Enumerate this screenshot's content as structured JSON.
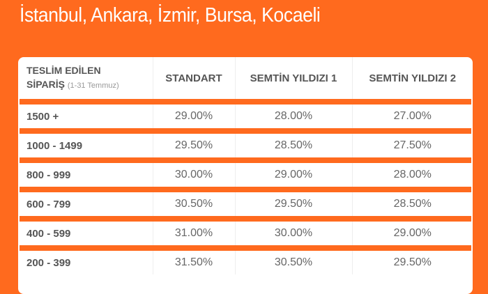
{
  "title": "İstanbul, Ankara, İzmir, Bursa, Kocaeli",
  "table": {
    "header": {
      "col0_line1": "TESLİM EDİLEN",
      "col0_line2": "SİPARİŞ",
      "col0_sub": "(1-31 Temmuz)",
      "col1": "STANDART",
      "col2": "SEMTİN YILDIZI 1",
      "col3": "SEMTİN YILDIZI 2"
    },
    "rows": [
      [
        "1500 +",
        "29.00%",
        "28.00%",
        "27.00%"
      ],
      [
        "1000 - 1499",
        "29.50%",
        "28.50%",
        "27.50%"
      ],
      [
        "800 - 999",
        "30.00%",
        "29.00%",
        "28.00%"
      ],
      [
        "600 - 799",
        "30.50%",
        "29.50%",
        "28.50%"
      ],
      [
        "400 - 599",
        "31.00%",
        "30.00%",
        "29.00%"
      ],
      [
        "200 - 399",
        "31.50%",
        "30.50%",
        "29.50%"
      ]
    ]
  },
  "colors": {
    "accent": "#ff6a1e"
  }
}
